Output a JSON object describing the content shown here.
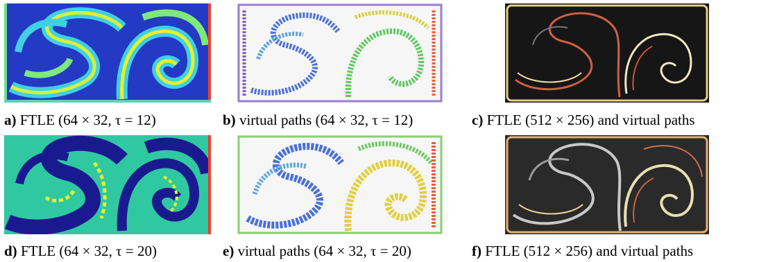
{
  "figure": {
    "captions": [
      {
        "letter": "a)",
        "text": "FTLE (64 × 32, τ = 12)"
      },
      {
        "letter": "b)",
        "text": "virtual paths (64 × 32, τ = 12)"
      },
      {
        "letter": "c)",
        "text": "FTLE (512 × 256) and virtual paths"
      },
      {
        "letter": "d)",
        "text": "FTLE (64 × 32, τ = 20)"
      },
      {
        "letter": "e)",
        "text": "virtual paths (64 × 32, τ = 20)"
      },
      {
        "letter": "f)",
        "text": "FTLE (512 × 256) and virtual paths"
      }
    ]
  }
}
